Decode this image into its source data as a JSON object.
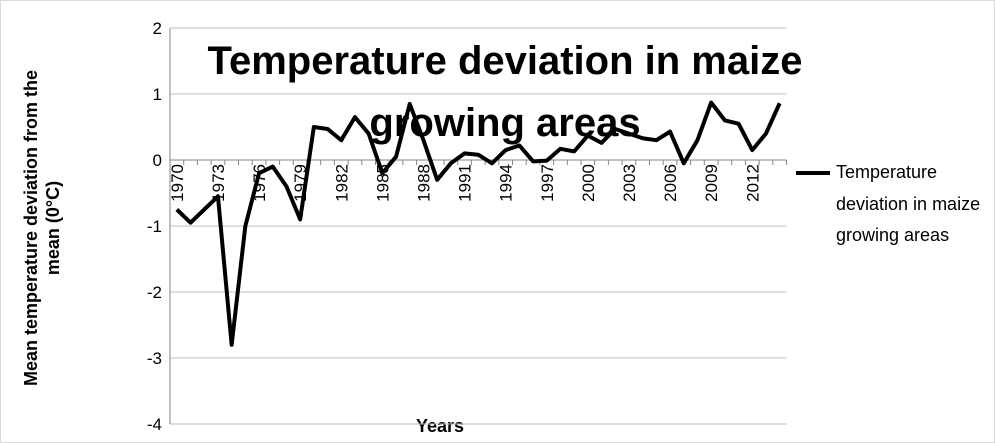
{
  "chart_data": {
    "type": "line",
    "title": "Temperature deviation in maize growing areas",
    "x_label": "Years",
    "y_label": "Mean temperature deviation from the mean (0°C)",
    "categories": [
      "1970",
      null,
      null,
      "1973",
      null,
      null,
      "1976",
      null,
      null,
      "1979",
      null,
      null,
      "1982",
      null,
      null,
      "1985",
      null,
      null,
      "1988",
      null,
      null,
      "1991",
      null,
      null,
      "1994",
      null,
      null,
      "1997",
      null,
      null,
      "2000",
      null,
      null,
      "2003",
      null,
      null,
      "2006",
      null,
      null,
      "2009",
      null,
      null,
      "2012",
      null,
      null
    ],
    "series": [
      {
        "name": "Temperature deviation in maize growing areas",
        "color": "#000000",
        "values": [
          -0.75,
          -0.95,
          -0.75,
          -0.55,
          -2.8,
          -1.0,
          -0.2,
          -0.1,
          -0.4,
          -0.9,
          0.5,
          0.47,
          0.3,
          0.65,
          0.4,
          -0.2,
          0.05,
          0.85,
          0.3,
          -0.3,
          -0.05,
          0.1,
          0.08,
          -0.05,
          0.15,
          0.22,
          -0.02,
          -0.01,
          0.17,
          0.13,
          0.37,
          0.26,
          0.47,
          0.4,
          0.33,
          0.3,
          0.43,
          -0.05,
          0.3,
          0.87,
          0.6,
          0.55,
          0.15,
          0.4,
          0.86
        ]
      }
    ],
    "ylim": [
      -4,
      2
    ],
    "yticks": [
      -4,
      -3,
      -2,
      -1,
      0,
      1,
      2
    ],
    "grid": true,
    "legend": "right"
  }
}
